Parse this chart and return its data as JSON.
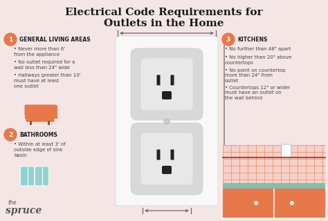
{
  "bg_color": "#f5e6e6",
  "title_line1": "Electrical Code Requirements for",
  "title_line2": "Outlets in the Home",
  "title_fontsize": 11,
  "title_color": "#1a1a1a",
  "section1_num": "1",
  "section1_head": "GENERAL LIVING AREAS",
  "section1_bullets": [
    "Never more than 6'\nfrom the appliance",
    "No outlet required for a\nwall less than 24\" wide",
    "Hallways greater than 10'\nmust have at least\none outlet"
  ],
  "section2_num": "2",
  "section2_head": "BATHROOMS",
  "section2_bullets": [
    "Within at least 3' of\noutside edge of sink\nbasin"
  ],
  "section3_num": "3",
  "section3_head": "KITCHENS",
  "section3_bullets": [
    "No further than 48\" apart",
    "No higher than 20\" above\ncountertops",
    "No point on countertop\nmore than 24\" from\noutlet",
    "Countertops 12\" or wider\nmust have an outlet on\nthe wall behind"
  ],
  "num_circle_color": "#e8784a",
  "bullet_color": "#444444",
  "head_color": "#1a1a1a",
  "outlet_plate_color": "#f8f8f8",
  "outlet_face_color": "#e0e0e0",
  "arrow_color": "#666666",
  "sofa_color": "#e8784a",
  "sofa_leg_color": "#a0522d",
  "window_color": "#7fcfcf",
  "kitchen_grid_bg": "#f5d0c8",
  "kitchen_grid_color": "#e8784a",
  "kitchen_counter_color": "#7fbfb0",
  "kitchen_cabinet_color": "#e8784a",
  "spruce_color": "#555555"
}
